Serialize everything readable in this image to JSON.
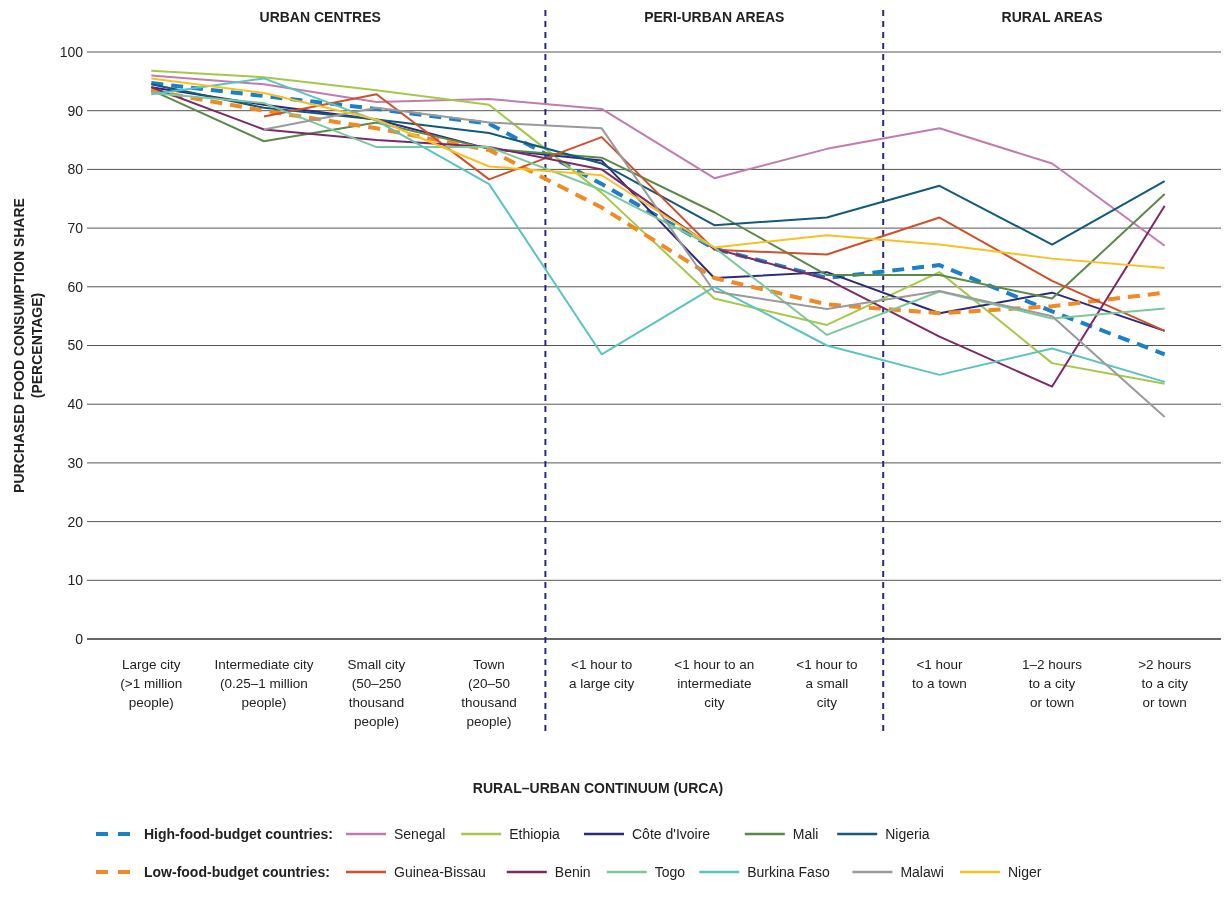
{
  "chart_data": {
    "type": "line",
    "xlabel": "RURAL–URBAN CONTINUUM (URCA)",
    "ylabel": "PURCHASED FOOD CONSUMPTION SHARE\n(PERCENTAGE)",
    "categories": [
      "Large city\n(>1 million\npeople)",
      "Intermediate city\n(0.25–1 million\npeople)",
      "Small city\n(50–250\nthousand\npeople)",
      "Town\n(20–50\nthousand\npeople)",
      "<1 hour to\na large city",
      "<1 hour to an\nintermediate\ncity",
      "<1 hour to\na small\ncity",
      "<1 hour\nto a town",
      "1–2 hours\nto a city\nor town",
      ">2 hours\nto a city\nor town"
    ],
    "ylim": [
      0,
      100
    ],
    "yticks": [
      0,
      10,
      20,
      30,
      40,
      50,
      60,
      70,
      80,
      90,
      100
    ],
    "grid": "y",
    "legend": "bottom",
    "line_style": "solid",
    "annotations": [
      "URBAN CENTRES",
      "PERI-URBAN AREAS",
      "RURAL AREAS"
    ],
    "series": [
      {
        "name": "High-food-budget countries:",
        "color": "#1a80c8",
        "line_style": "dashed",
        "values": [
          94.7,
          92.5,
          90.3,
          87.8,
          77.5,
          66.5,
          61.5,
          63.7,
          55.8,
          48.5
        ]
      },
      {
        "name": "Senegal",
        "color": "#c27bb0",
        "values": [
          96,
          94.5,
          91.5,
          92,
          90.3,
          78.5,
          83.5,
          87,
          81,
          67
        ]
      },
      {
        "name": "Ethiopia",
        "color": "#a5c84a",
        "values": [
          96.8,
          95.7,
          93.5,
          91,
          76,
          58,
          53.5,
          62.5,
          47,
          43.5
        ]
      },
      {
        "name": "Côte d'Ivoire",
        "color": "#2b2a7f",
        "values": [
          94,
          91,
          88.5,
          83.5,
          81.5,
          61.5,
          62.5,
          55.5,
          59,
          52.5
        ]
      },
      {
        "name": "Mali",
        "color": "#5a8a4a",
        "values": [
          93.5,
          84.8,
          88,
          83.5,
          82,
          72.7,
          62,
          62,
          58,
          75.8
        ]
      },
      {
        "name": "Nigeria",
        "color": "#135a7a",
        "values": [
          94.5,
          90.5,
          88.5,
          86.2,
          81,
          70.5,
          71.8,
          77.2,
          67.2,
          78
        ]
      },
      {
        "name": "Low-food-budget countries:",
        "color": "#f08a24",
        "line_style": "dashed",
        "values": [
          93.4,
          90,
          87,
          83.3,
          73.5,
          61.5,
          57,
          55.5,
          56.7,
          59
        ]
      },
      {
        "name": "Guinea-Bissau",
        "color": "#d0502a",
        "values": [
          null,
          89,
          92.8,
          78.3,
          85.5,
          66.3,
          65.5,
          71.8,
          61,
          52.5
        ]
      },
      {
        "name": "Benin",
        "color": "#7c2a66",
        "values": [
          94,
          86.8,
          85,
          83.8,
          80,
          66.5,
          61.3,
          51.5,
          43,
          73.8
        ]
      },
      {
        "name": "Togo",
        "color": "#7cc89a",
        "values": [
          93,
          91.3,
          83.8,
          83.8,
          76.5,
          66.7,
          51.8,
          59.2,
          54.6,
          56.3
        ]
      },
      {
        "name": "Burkina Faso",
        "color": "#5ac4c0",
        "values": [
          92.8,
          95.5,
          88.3,
          77.5,
          48.5,
          60,
          50,
          45,
          49.5,
          43.8
        ]
      },
      {
        "name": "Malawi",
        "color": "#9a9a9a",
        "values": [
          null,
          86.8,
          90.5,
          88,
          87,
          59.2,
          56.2,
          59.3,
          55,
          37.8
        ]
      },
      {
        "name": "Niger",
        "color": "#f8c020",
        "values": [
          95.5,
          93,
          88.5,
          80.5,
          79,
          66.7,
          68.8,
          67.2,
          64.8,
          63.2
        ]
      }
    ]
  }
}
